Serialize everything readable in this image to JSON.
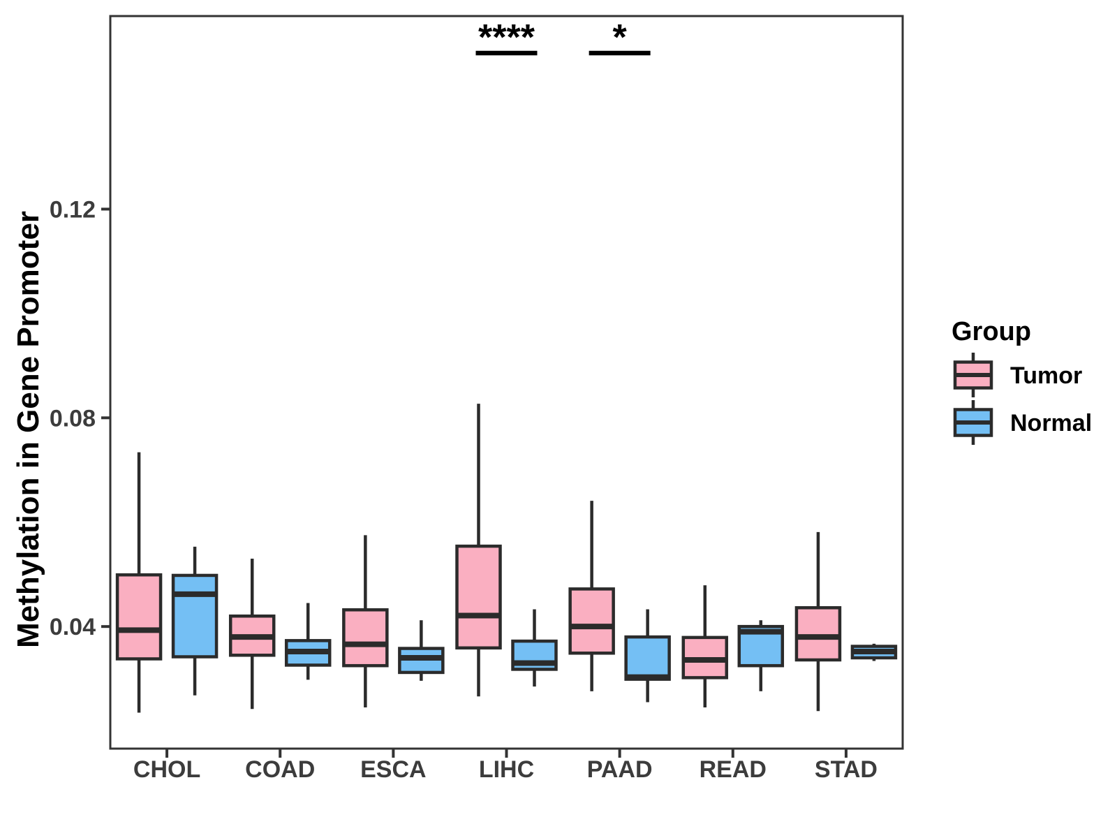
{
  "figure": {
    "background": "#FFFFFF"
  },
  "chart_data": {
    "type": "boxplot",
    "title": "",
    "xlabel": "",
    "ylabel": "Methylation in Gene Promoter",
    "categories": [
      "CHOL",
      "COAD",
      "ESCA",
      "LIHC",
      "PAAD",
      "READ",
      "STAD"
    ],
    "y_ticks": [
      {
        "value": 0.04,
        "label": "0.04"
      },
      {
        "value": 0.08,
        "label": "0.08"
      },
      {
        "value": 0.12,
        "label": "0.12"
      }
    ],
    "ylim": [
      0.0166,
      0.157
    ],
    "grid": "off",
    "legend": {
      "title": "Group",
      "position": "right",
      "entries": [
        {
          "label": "Tumor",
          "color": "#FAAFC1"
        },
        {
          "label": "Normal",
          "color": "#74BFF4"
        }
      ]
    },
    "series": [
      {
        "name": "Tumor",
        "color": "#FAAFC1",
        "boxes": [
          {
            "category": "CHOL",
            "min": 0.0235,
            "q1": 0.0338,
            "median": 0.0393,
            "q3": 0.0499,
            "max": 0.0734
          },
          {
            "category": "COAD",
            "min": 0.0242,
            "q1": 0.0345,
            "median": 0.038,
            "q3": 0.042,
            "max": 0.053
          },
          {
            "category": "ESCA",
            "min": 0.0245,
            "q1": 0.0325,
            "median": 0.0366,
            "q3": 0.0432,
            "max": 0.0575
          },
          {
            "category": "LIHC",
            "min": 0.0266,
            "q1": 0.0359,
            "median": 0.0421,
            "q3": 0.0554,
            "max": 0.0827
          },
          {
            "category": "PAAD",
            "min": 0.0276,
            "q1": 0.0349,
            "median": 0.04,
            "q3": 0.0472,
            "max": 0.0641
          },
          {
            "category": "READ",
            "min": 0.0245,
            "q1": 0.0302,
            "median": 0.0336,
            "q3": 0.0379,
            "max": 0.0479
          },
          {
            "category": "STAD",
            "min": 0.0238,
            "q1": 0.0336,
            "median": 0.038,
            "q3": 0.0436,
            "max": 0.0581
          }
        ]
      },
      {
        "name": "Normal",
        "color": "#74BFF4",
        "boxes": [
          {
            "category": "CHOL",
            "min": 0.0268,
            "q1": 0.0342,
            "median": 0.0462,
            "q3": 0.0498,
            "max": 0.0553
          },
          {
            "category": "COAD",
            "min": 0.0298,
            "q1": 0.0326,
            "median": 0.0352,
            "q3": 0.0373,
            "max": 0.0445
          },
          {
            "category": "ESCA",
            "min": 0.0296,
            "q1": 0.0312,
            "median": 0.034,
            "q3": 0.0358,
            "max": 0.0412
          },
          {
            "category": "LIHC",
            "min": 0.0285,
            "q1": 0.0318,
            "median": 0.033,
            "q3": 0.0372,
            "max": 0.0433
          },
          {
            "category": "PAAD",
            "min": 0.0255,
            "q1": 0.0299,
            "median": 0.0303,
            "q3": 0.038,
            "max": 0.0433
          },
          {
            "category": "READ",
            "min": 0.0276,
            "q1": 0.0325,
            "median": 0.039,
            "q3": 0.04,
            "max": 0.0412
          },
          {
            "category": "STAD",
            "min": 0.0334,
            "q1": 0.034,
            "median": 0.0352,
            "q3": 0.0362,
            "max": 0.0367
          }
        ]
      }
    ],
    "annotations": [
      {
        "category": "LIHC",
        "label": "****"
      },
      {
        "category": "PAAD",
        "label": "*"
      }
    ],
    "style": {
      "box_border": "#2B2B2B",
      "axis_line": "#333333",
      "axis_text": "#3C3C3C",
      "title_text": "#000000"
    }
  }
}
